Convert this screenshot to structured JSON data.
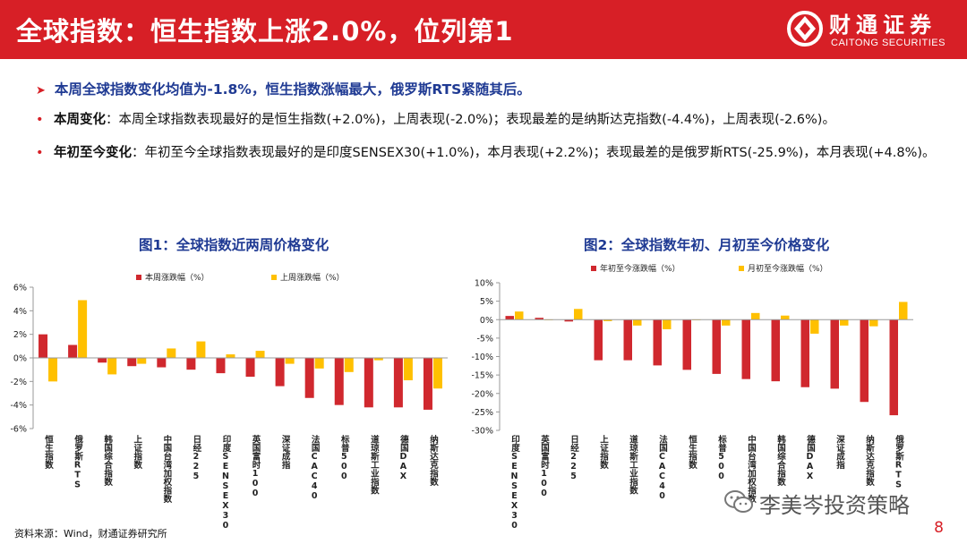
{
  "header": {
    "title": "全球指数：恒生指数上涨2.0%，位列第1",
    "logo_cn": "财通证券",
    "logo_en": "CAITONG SECURITIES"
  },
  "summary": "本周全球指数变化均值为-1.8%，恒生指数涨幅最大，俄罗斯RTS紧随其后。",
  "bullets": [
    {
      "label": "本周变化",
      "text": "：本周全球指数表现最好的是恒生指数(+2.0%)，上周表现(-2.0%)；表现最差的是纳斯达克指数(-4.4%)，上周表现(-2.6%)。"
    },
    {
      "label": "年初至今变化",
      "text": "：年初至今全球指数表现最好的是印度SENSEX30(+1.0%)，本月表现(+2.2%)；表现最差的是俄罗斯RTS(-25.9%)，本月表现(+4.8%)。"
    }
  ],
  "chart_data": [
    {
      "type": "bar",
      "title": "图1：全球指数近两周价格变化",
      "categories": [
        "恒生指数",
        "俄罗斯RTS",
        "韩国综合指数",
        "上证指数",
        "中国台湾加权指数",
        "日经225",
        "印度SENSEX30",
        "英国富时100",
        "深证成指",
        "法国CAC40",
        "标普500",
        "道琼斯工业指数",
        "德国DAX",
        "纳斯达克指数"
      ],
      "series": [
        {
          "name": "本周涨跌幅（%）",
          "color": "#d0282e",
          "values": [
            2.0,
            1.1,
            -0.4,
            -0.7,
            -0.8,
            -1.0,
            -1.3,
            -1.6,
            -2.4,
            -3.4,
            -4.0,
            -4.2,
            -4.2,
            -4.4
          ]
        },
        {
          "name": "上周涨跌幅（%）",
          "color": "#ffc000",
          "values": [
            -2.0,
            4.9,
            -1.4,
            -0.5,
            0.8,
            1.4,
            0.3,
            0.6,
            -0.5,
            -0.9,
            -1.2,
            -0.2,
            -1.9,
            -2.6
          ]
        }
      ],
      "ylim": [
        -6,
        6
      ],
      "yticks": [
        "-6%",
        "-4%",
        "-2%",
        "0%",
        "2%",
        "4%",
        "6%"
      ],
      "legend": "top"
    },
    {
      "type": "bar",
      "title": "图2：全球指数年初、月初至今价格变化",
      "categories": [
        "印度SENSEX30",
        "英国富时100",
        "日经225",
        "上证指数",
        "道琼斯工业指数",
        "法国CAC40",
        "恒生指数",
        "标普500",
        "中国台湾加权指数",
        "韩国综合指数",
        "德国DAX",
        "深证成指",
        "纳斯达克指数",
        "俄罗斯RTS"
      ],
      "series": [
        {
          "name": "年初至今涨跌幅（%）",
          "color": "#d0282e",
          "values": [
            1.0,
            0.5,
            -0.5,
            -11.0,
            -11.0,
            -12.4,
            -13.6,
            -14.7,
            -16.1,
            -16.7,
            -18.3,
            -18.7,
            -22.3,
            -25.9
          ]
        },
        {
          "name": "月初至今涨跌幅（%）",
          "color": "#ffc000",
          "values": [
            2.2,
            0.0,
            2.9,
            -0.4,
            -1.6,
            -2.6,
            0.0,
            -1.6,
            1.8,
            1.1,
            -3.8,
            -1.6,
            -1.8,
            4.8
          ]
        }
      ],
      "ylim": [
        -30,
        10
      ],
      "yticks": [
        "-30%",
        "-25%",
        "-20%",
        "-15%",
        "-10%",
        "-5%",
        "0%",
        "5%",
        "10%"
      ],
      "legend": "top"
    }
  ],
  "source": "资料来源：Wind，财通证券研究所",
  "watermark": "李美岑投资策略",
  "page_number": "8"
}
